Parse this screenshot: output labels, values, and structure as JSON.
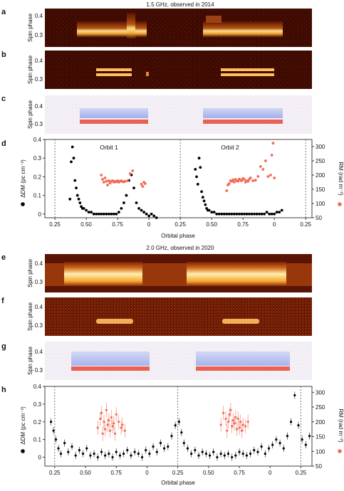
{
  "figure": {
    "section1_title": "1.5 GHz, observed in 2014",
    "section2_title": "2.0 GHz, observed in 2020",
    "colors": {
      "heat_dark": "#4a0a00",
      "heat_bright": "#ffe9a0",
      "pol_red": "#e8483a",
      "pol_blue": "#6f86e6",
      "dm_points": "#000000",
      "rm_points": "#f26b55"
    }
  },
  "panels": [
    {
      "letter": "a",
      "ylabel": "Spin phase",
      "yticks": [
        "0.4",
        "0.3"
      ]
    },
    {
      "letter": "b",
      "ylabel": "Spin phase",
      "yticks": [
        "0.4",
        "0.3"
      ]
    },
    {
      "letter": "c",
      "ylabel": "Spin phase",
      "yticks": [
        "0.4",
        "0.3"
      ]
    },
    {
      "letter": "d",
      "ylabel": "ΔDM (pc cm⁻³)",
      "y2label": "RM (rad m⁻²)",
      "orbit_labels": [
        "Orbit 1",
        "Orbit 2"
      ],
      "xlabel": "Orbital phase"
    },
    {
      "letter": "e",
      "ylabel": "Spin phase",
      "yticks": [
        "0.4",
        "0.3"
      ]
    },
    {
      "letter": "f",
      "ylabel": "Spin phase",
      "yticks": [
        "0.4",
        "0.3"
      ]
    },
    {
      "letter": "g",
      "ylabel": "Spin phase",
      "yticks": [
        "0.4",
        "0.3"
      ]
    },
    {
      "letter": "h",
      "ylabel": "ΔDM (pc cm⁻³)",
      "y2label": "RM (rad m⁻²)",
      "xlabel": "Orbital phase"
    }
  ],
  "chart_data": [
    {
      "panel": "d",
      "type": "scatter",
      "xticks": [
        "0.25",
        "0.50",
        "0.75",
        "0",
        "0.25",
        "0.50",
        "0.75",
        "0",
        "0.25"
      ],
      "y_ticks": [
        "0.4",
        "0.3",
        "0.2",
        "0.1",
        "0"
      ],
      "y2_ticks": [
        "300",
        "250",
        "200",
        "150",
        "100",
        "50"
      ],
      "ylim": [
        -0.02,
        0.4
      ],
      "y2lim": [
        50,
        325
      ],
      "dashed_lines_at": [
        "0.25",
        "0.25",
        "0.25"
      ],
      "series": [
        {
          "name": "ΔDM",
          "axis": "left",
          "x": [
            0.37,
            0.38,
            0.39,
            0.4,
            0.41,
            0.42,
            0.43,
            0.44,
            0.45,
            0.46,
            0.47,
            0.48,
            0.5,
            0.52,
            0.54,
            0.56,
            0.58,
            0.6,
            0.62,
            0.64,
            0.66,
            0.68,
            0.7,
            0.72,
            0.74,
            0.76,
            0.78,
            0.8,
            0.82,
            0.84,
            0.86,
            0.88,
            0.9,
            0.92,
            0.94,
            0.96,
            0.98,
            1.0,
            1.02,
            1.04,
            1.06,
            1.37,
            1.38,
            1.39,
            1.4,
            1.41,
            1.42,
            1.43,
            1.44,
            1.45,
            1.46,
            1.47,
            1.48,
            1.5,
            1.52,
            1.54,
            1.56,
            1.58,
            1.6,
            1.62,
            1.64,
            1.66,
            1.68,
            1.7,
            1.72,
            1.74,
            1.76,
            1.78,
            1.8,
            1.82,
            1.84,
            1.86,
            1.88,
            1.9,
            1.92,
            1.94,
            1.96,
            1.98,
            2.0,
            2.02,
            2.04,
            2.06
          ],
          "values": [
            0.08,
            0.28,
            0.36,
            0.3,
            0.18,
            0.14,
            0.1,
            0.08,
            0.06,
            0.04,
            0.03,
            0.03,
            0.02,
            0.01,
            0.01,
            0.0,
            0.0,
            0.0,
            0.0,
            0.0,
            0.0,
            0.0,
            0.0,
            0.0,
            0.0,
            0.01,
            0.03,
            0.06,
            0.1,
            0.18,
            0.21,
            0.14,
            0.06,
            0.03,
            0.02,
            0.01,
            0.0,
            -0.01,
            0.0,
            -0.01,
            -0.02,
            0.24,
            0.2,
            0.16,
            0.3,
            0.25,
            0.12,
            0.09,
            0.07,
            0.05,
            0.03,
            0.02,
            0.02,
            0.01,
            0.01,
            0.0,
            0.0,
            0.0,
            0.0,
            0.0,
            0.0,
            0.0,
            0.0,
            0.0,
            0.0,
            0.0,
            0.0,
            0.0,
            0.0,
            0.0,
            0.0,
            0.0,
            0.0,
            0.0,
            0.0,
            0.01,
            0.0,
            0.0,
            0.0,
            0.01,
            0.01,
            0.02
          ]
        },
        {
          "name": "RM",
          "axis": "right",
          "x": [
            0.62,
            0.63,
            0.64,
            0.65,
            0.66,
            0.67,
            0.68,
            0.69,
            0.7,
            0.71,
            0.72,
            0.73,
            0.74,
            0.75,
            0.76,
            0.77,
            0.78,
            0.79,
            0.8,
            0.81,
            0.83,
            0.85,
            0.87,
            0.94,
            0.95,
            0.96,
            0.97,
            1.62,
            1.63,
            1.64,
            1.65,
            1.66,
            1.67,
            1.68,
            1.69,
            1.7,
            1.71,
            1.72,
            1.73,
            1.74,
            1.75,
            1.76,
            1.77,
            1.78,
            1.79,
            1.8,
            1.81,
            1.83,
            1.85,
            1.87,
            1.89,
            1.91,
            1.93,
            1.95,
            1.97,
            1.99,
            1.98,
            2.0
          ],
          "values": [
            200,
            185,
            175,
            190,
            178,
            165,
            180,
            172,
            178,
            180,
            175,
            178,
            176,
            180,
            175,
            178,
            180,
            177,
            176,
            178,
            180,
            205,
            215,
            168,
            160,
            175,
            170,
            145,
            165,
            170,
            180,
            178,
            183,
            175,
            185,
            180,
            178,
            186,
            182,
            180,
            188,
            185,
            175,
            180,
            178,
            185,
            190,
            180,
            182,
            195,
            230,
            220,
            250,
            195,
            200,
            312,
            270,
            190
          ]
        }
      ]
    },
    {
      "panel": "h",
      "type": "scatter",
      "xticks": [
        "0.25",
        "0.50",
        "0.75",
        "0",
        "0.25",
        "0.50",
        "0.75",
        "0",
        "0.25"
      ],
      "y_ticks": [
        "0.4",
        "0.3",
        "0.2",
        "0.1",
        "0"
      ],
      "y2_ticks": [
        "300",
        "250",
        "200",
        "150",
        "100",
        "50"
      ],
      "ylim": [
        -0.05,
        0.4
      ],
      "y2lim": [
        50,
        320
      ],
      "dashed_lines_at": [
        "0.25",
        "0.25",
        "0.25"
      ],
      "series": [
        {
          "name": "ΔDM",
          "axis": "left",
          "x": [
            0.22,
            0.24,
            0.26,
            0.28,
            0.3,
            0.33,
            0.36,
            0.39,
            0.42,
            0.45,
            0.48,
            0.51,
            0.54,
            0.57,
            0.6,
            0.63,
            0.66,
            0.69,
            0.72,
            0.75,
            0.78,
            0.81,
            0.84,
            0.87,
            0.9,
            0.93,
            0.96,
            0.99,
            1.02,
            1.05,
            1.08,
            1.11,
            1.14,
            1.17,
            1.2,
            1.23,
            1.26,
            1.28,
            1.3,
            1.33,
            1.36,
            1.39,
            1.42,
            1.45,
            1.48,
            1.51,
            1.54,
            1.57,
            1.6,
            1.63,
            1.66,
            1.69,
            1.72,
            1.75,
            1.78,
            1.81,
            1.84,
            1.87,
            1.9,
            1.93,
            1.96,
            1.99,
            2.02,
            2.05,
            2.08,
            2.11,
            2.14,
            2.17,
            2.2,
            2.23,
            2.26,
            2.29,
            2.32
          ],
          "values": [
            0.2,
            0.15,
            0.1,
            0.05,
            0.02,
            0.08,
            0.03,
            0.06,
            0.01,
            0.04,
            0.02,
            0.05,
            0.01,
            0.02,
            0.0,
            0.03,
            0.01,
            0.02,
            0.0,
            0.03,
            0.01,
            0.02,
            0.04,
            0.01,
            0.03,
            0.02,
            0.0,
            0.04,
            0.02,
            0.06,
            0.03,
            0.08,
            0.05,
            0.06,
            0.12,
            0.18,
            0.2,
            0.14,
            0.08,
            0.05,
            0.02,
            0.04,
            0.01,
            0.03,
            0.02,
            0.01,
            0.03,
            0.0,
            0.02,
            0.01,
            0.02,
            0.0,
            0.01,
            0.03,
            0.02,
            0.01,
            0.02,
            0.04,
            0.03,
            0.06,
            0.02,
            0.05,
            0.07,
            0.1,
            0.08,
            0.05,
            0.12,
            0.2,
            0.35,
            0.18,
            0.1,
            0.07,
            0.12
          ]
        },
        {
          "name": "RM",
          "axis": "right",
          "x": [
            0.6,
            0.62,
            0.63,
            0.64,
            0.65,
            0.66,
            0.67,
            0.68,
            0.69,
            0.7,
            0.71,
            0.72,
            0.73,
            0.74,
            0.75,
            0.77,
            0.79,
            0.8,
            0.82,
            1.6,
            1.62,
            1.64,
            1.65,
            1.66,
            1.67,
            1.68,
            1.69,
            1.7,
            1.71,
            1.72,
            1.73,
            1.74,
            1.75,
            1.76,
            1.77,
            1.78,
            1.8,
            1.82
          ],
          "values": [
            180,
            210,
            230,
            160,
            200,
            175,
            240,
            190,
            205,
            170,
            215,
            185,
            195,
            160,
            225,
            200,
            180,
            190,
            170,
            190,
            230,
            210,
            170,
            200,
            225,
            240,
            185,
            205,
            195,
            215,
            175,
            210,
            180,
            200,
            170,
            190,
            185,
            200
          ]
        }
      ]
    }
  ]
}
